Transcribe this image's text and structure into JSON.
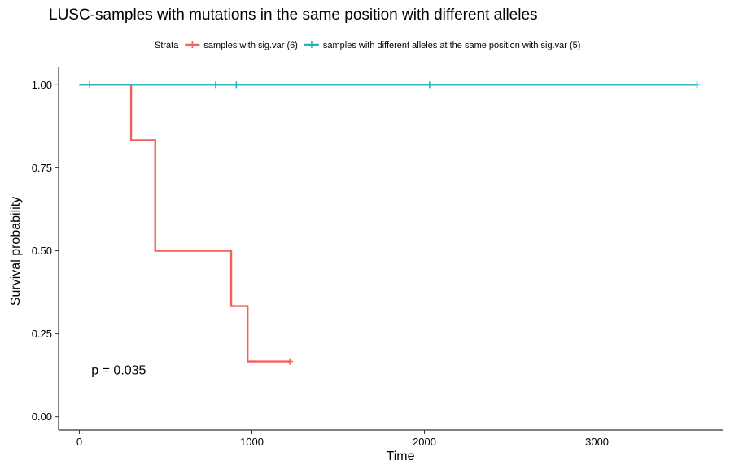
{
  "chart_data": {
    "type": "line",
    "title": "LUSC-samples with mutations in the same position with different alleles",
    "xlabel": "Time",
    "ylabel": "Survival probability",
    "xlim": [
      -120,
      3700
    ],
    "ylim": [
      -0.04,
      1.04
    ],
    "x_ticks": [
      0,
      1000,
      2000,
      3000
    ],
    "y_ticks": [
      0.0,
      0.25,
      0.5,
      0.75,
      1.0
    ],
    "x_tick_labels": [
      "0",
      "1000",
      "2000",
      "3000"
    ],
    "y_tick_labels": [
      "0.00",
      "0.25",
      "0.50",
      "0.75",
      "1.00"
    ],
    "grid": false,
    "legend": {
      "title": "Strata",
      "position": "top"
    },
    "annotation": "p = 0.035",
    "series": [
      {
        "name": "samples with sig.var (6)",
        "color": "#f0625a",
        "step": true,
        "x": [
          0,
          300,
          440,
          880,
          975,
          1220
        ],
        "y": [
          1.0,
          0.8333,
          0.5,
          0.3333,
          0.1667,
          0.1667
        ],
        "censored": [
          {
            "x": 1220,
            "y": 0.1667
          }
        ]
      },
      {
        "name": "samples with different alleles at the same position with sig.var (5)",
        "color": "#1fb5c0",
        "step": true,
        "x": [
          0,
          3580
        ],
        "y": [
          1.0,
          1.0
        ],
        "censored": [
          {
            "x": 60,
            "y": 1.0
          },
          {
            "x": 790,
            "y": 1.0
          },
          {
            "x": 910,
            "y": 1.0
          },
          {
            "x": 2030,
            "y": 1.0
          },
          {
            "x": 3580,
            "y": 1.0
          }
        ]
      }
    ]
  }
}
